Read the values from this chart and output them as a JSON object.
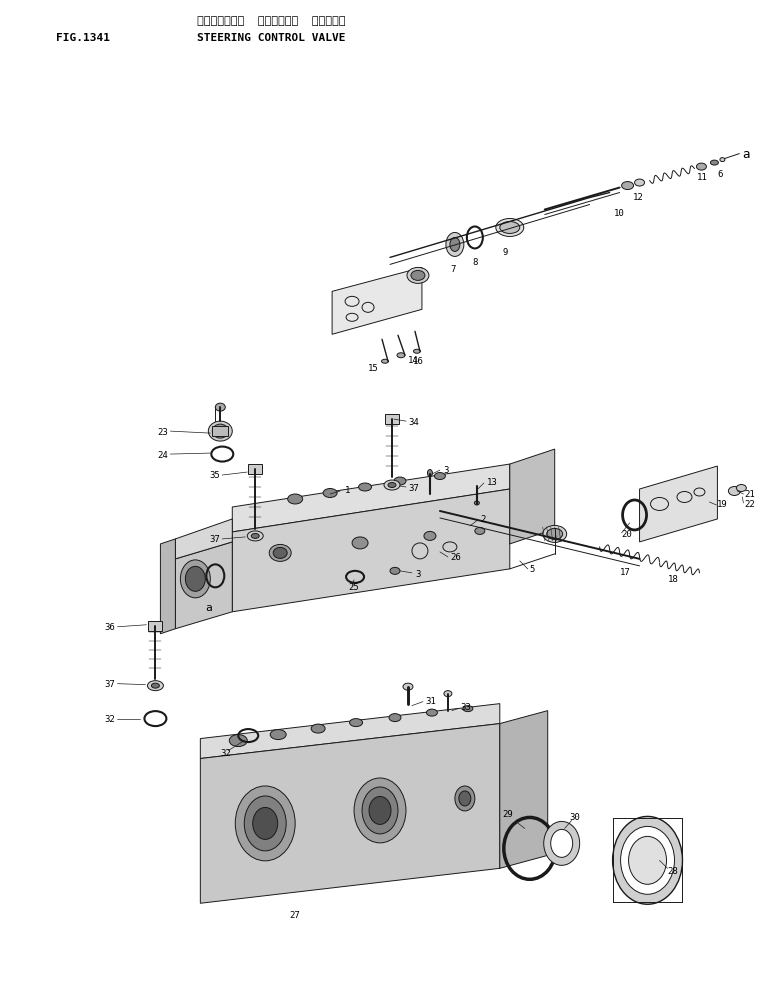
{
  "title_jp": "ステアリング゚  コントロール  パルプ",
  "title_en": "STEERING CONTROL VALVE",
  "fig_label": "FIG.1341",
  "bg_color": "#ffffff",
  "line_color": "#1a1a1a",
  "text_color": "#000000",
  "fig_size": [
    7.78,
    9.87
  ],
  "dpi": 100
}
